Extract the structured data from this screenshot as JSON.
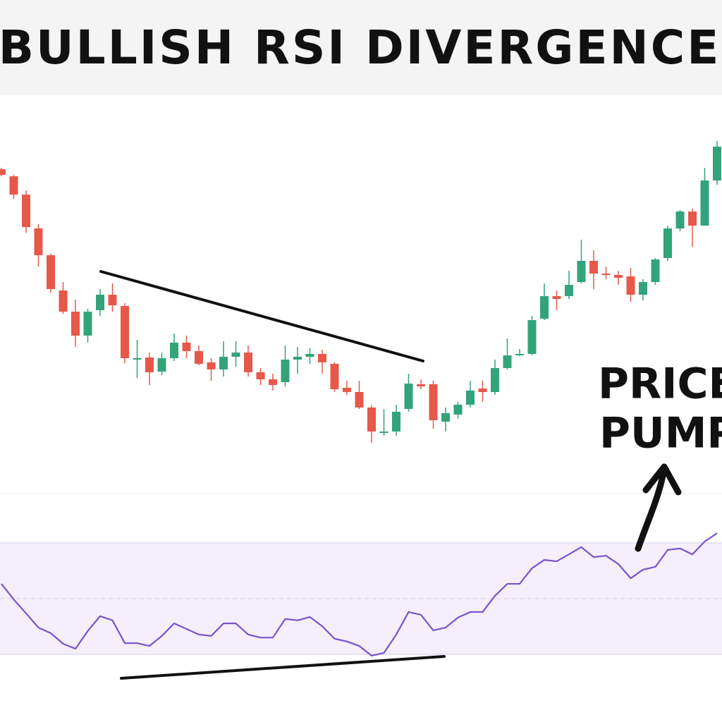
{
  "chart_data": [
    {
      "type": "candlestick",
      "title": "BULLISH RSI DIVERGENCE",
      "annotations": [
        "PRICE",
        "PUMP"
      ],
      "up_color": "#33a37a",
      "down_color": "#e6584a",
      "ylim": [
        50,
        500
      ],
      "open": [
        460,
        450,
        424,
        376,
        338,
        288,
        258,
        224,
        260,
        282,
        266,
        190,
        193,
        173,
        192,
        214,
        202,
        186,
        176,
        194,
        200,
        172,
        162,
        158,
        190,
        194,
        198,
        184,
        150,
        144,
        122,
        86,
        88,
        120,
        155,
        155,
        102,
        112,
        126,
        149,
        144,
        178,
        196,
        198,
        248,
        280,
        280,
        300,
        330,
        312,
        310,
        308,
        282,
        300,
        334,
        376,
        400,
        380,
        444
      ],
      "close": [
        452,
        424,
        378,
        338,
        290,
        258,
        224,
        258,
        282,
        267,
        192,
        192,
        172,
        192,
        214,
        202,
        184,
        176,
        194,
        200,
        172,
        162,
        154,
        190,
        194,
        198,
        186,
        148,
        144,
        122,
        88,
        88,
        116,
        156,
        152,
        104,
        114,
        126,
        146,
        144,
        178,
        196,
        198,
        246,
        280,
        276,
        296,
        330,
        312,
        310,
        306,
        282,
        300,
        332,
        376,
        400,
        380,
        444,
        492
      ],
      "high": [
        462,
        452,
        430,
        382,
        340,
        300,
        275,
        262,
        290,
        298,
        270,
        218,
        200,
        200,
        227,
        224,
        210,
        192,
        216,
        216,
        210,
        178,
        170,
        210,
        208,
        206,
        204,
        186,
        160,
        160,
        125,
        120,
        126,
        170,
        162,
        160,
        122,
        130,
        160,
        160,
        190,
        220,
        205,
        252,
        298,
        288,
        316,
        360,
        345,
        322,
        316,
        320,
        304,
        334,
        380,
        402,
        404,
        462,
        500
      ],
      "low": [
        450,
        418,
        370,
        322,
        285,
        255,
        208,
        214,
        252,
        258,
        185,
        164,
        154,
        168,
        188,
        192,
        182,
        160,
        166,
        180,
        166,
        154,
        146,
        152,
        170,
        184,
        170,
        144,
        140,
        120,
        72,
        82,
        82,
        116,
        148,
        92,
        88,
        106,
        122,
        130,
        140,
        176,
        195,
        196,
        246,
        260,
        276,
        298,
        290,
        304,
        296,
        272,
        274,
        296,
        330,
        372,
        350,
        380,
        438
      ]
    },
    {
      "type": "line",
      "name": "RSI",
      "color": "#7b52c9",
      "ylim": [
        20,
        90
      ],
      "band": [
        30,
        70
      ],
      "midline": 50,
      "values": [
        55.3,
        49.7,
        44.7,
        39.6,
        37.6,
        33.8,
        32,
        38.4,
        43.7,
        42.2,
        34,
        34,
        33,
        36.6,
        41.1,
        39.1,
        37.1,
        36.6,
        41.1,
        41.1,
        37.1,
        36,
        36,
        42.7,
        42.2,
        43.4,
        40.1,
        35.6,
        34.6,
        33,
        29.5,
        30.5,
        37.1,
        45.2,
        44.2,
        38.6,
        39.6,
        43.2,
        45.2,
        45.2,
        51,
        55.3,
        55.3,
        60.9,
        63.9,
        63.4,
        65.9,
        68.5,
        64.9,
        65.4,
        62.4,
        57.3,
        60.4,
        61.4,
        67.5,
        68,
        65.9,
        70.5,
        73.5
      ]
    }
  ]
}
